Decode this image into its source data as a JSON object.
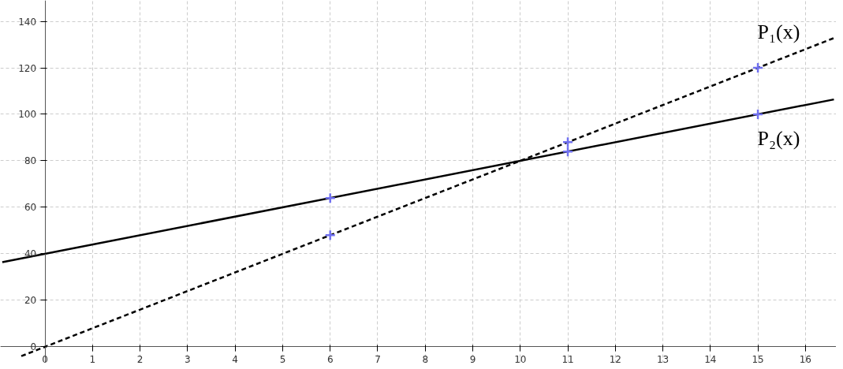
{
  "chart_data": {
    "type": "line",
    "xlim": [
      -0.94,
      16.65
    ],
    "ylim": [
      -7,
      149
    ],
    "xticks": [
      0,
      1,
      2,
      3,
      4,
      5,
      6,
      7,
      8,
      9,
      10,
      11,
      12,
      13,
      14,
      15,
      16
    ],
    "yticks": [
      0,
      20,
      40,
      60,
      80,
      100,
      120,
      140
    ],
    "grid": true,
    "series": [
      {
        "line_style": "dashed",
        "color": "#000000",
        "x": [
          -0.5,
          16.6
        ],
        "values": [
          -4,
          132.8
        ]
      },
      {
        "line_style": "solid",
        "color": "#000000",
        "x": [
          -0.9,
          16.6
        ],
        "values": [
          36.4,
          106.4
        ]
      },
      {
        "type": "scatter",
        "marker": "cross",
        "color": "#7070f0",
        "x": [
          6,
          11,
          15
        ],
        "values": [
          48,
          88,
          120
        ]
      },
      {
        "type": "scatter",
        "marker": "cross",
        "color": "#7070f0",
        "x": [
          6,
          11,
          15
        ],
        "values": [
          64,
          84,
          100
        ]
      }
    ],
    "annotations": [
      "P₁(x)",
      "P₂(x)"
    ]
  }
}
